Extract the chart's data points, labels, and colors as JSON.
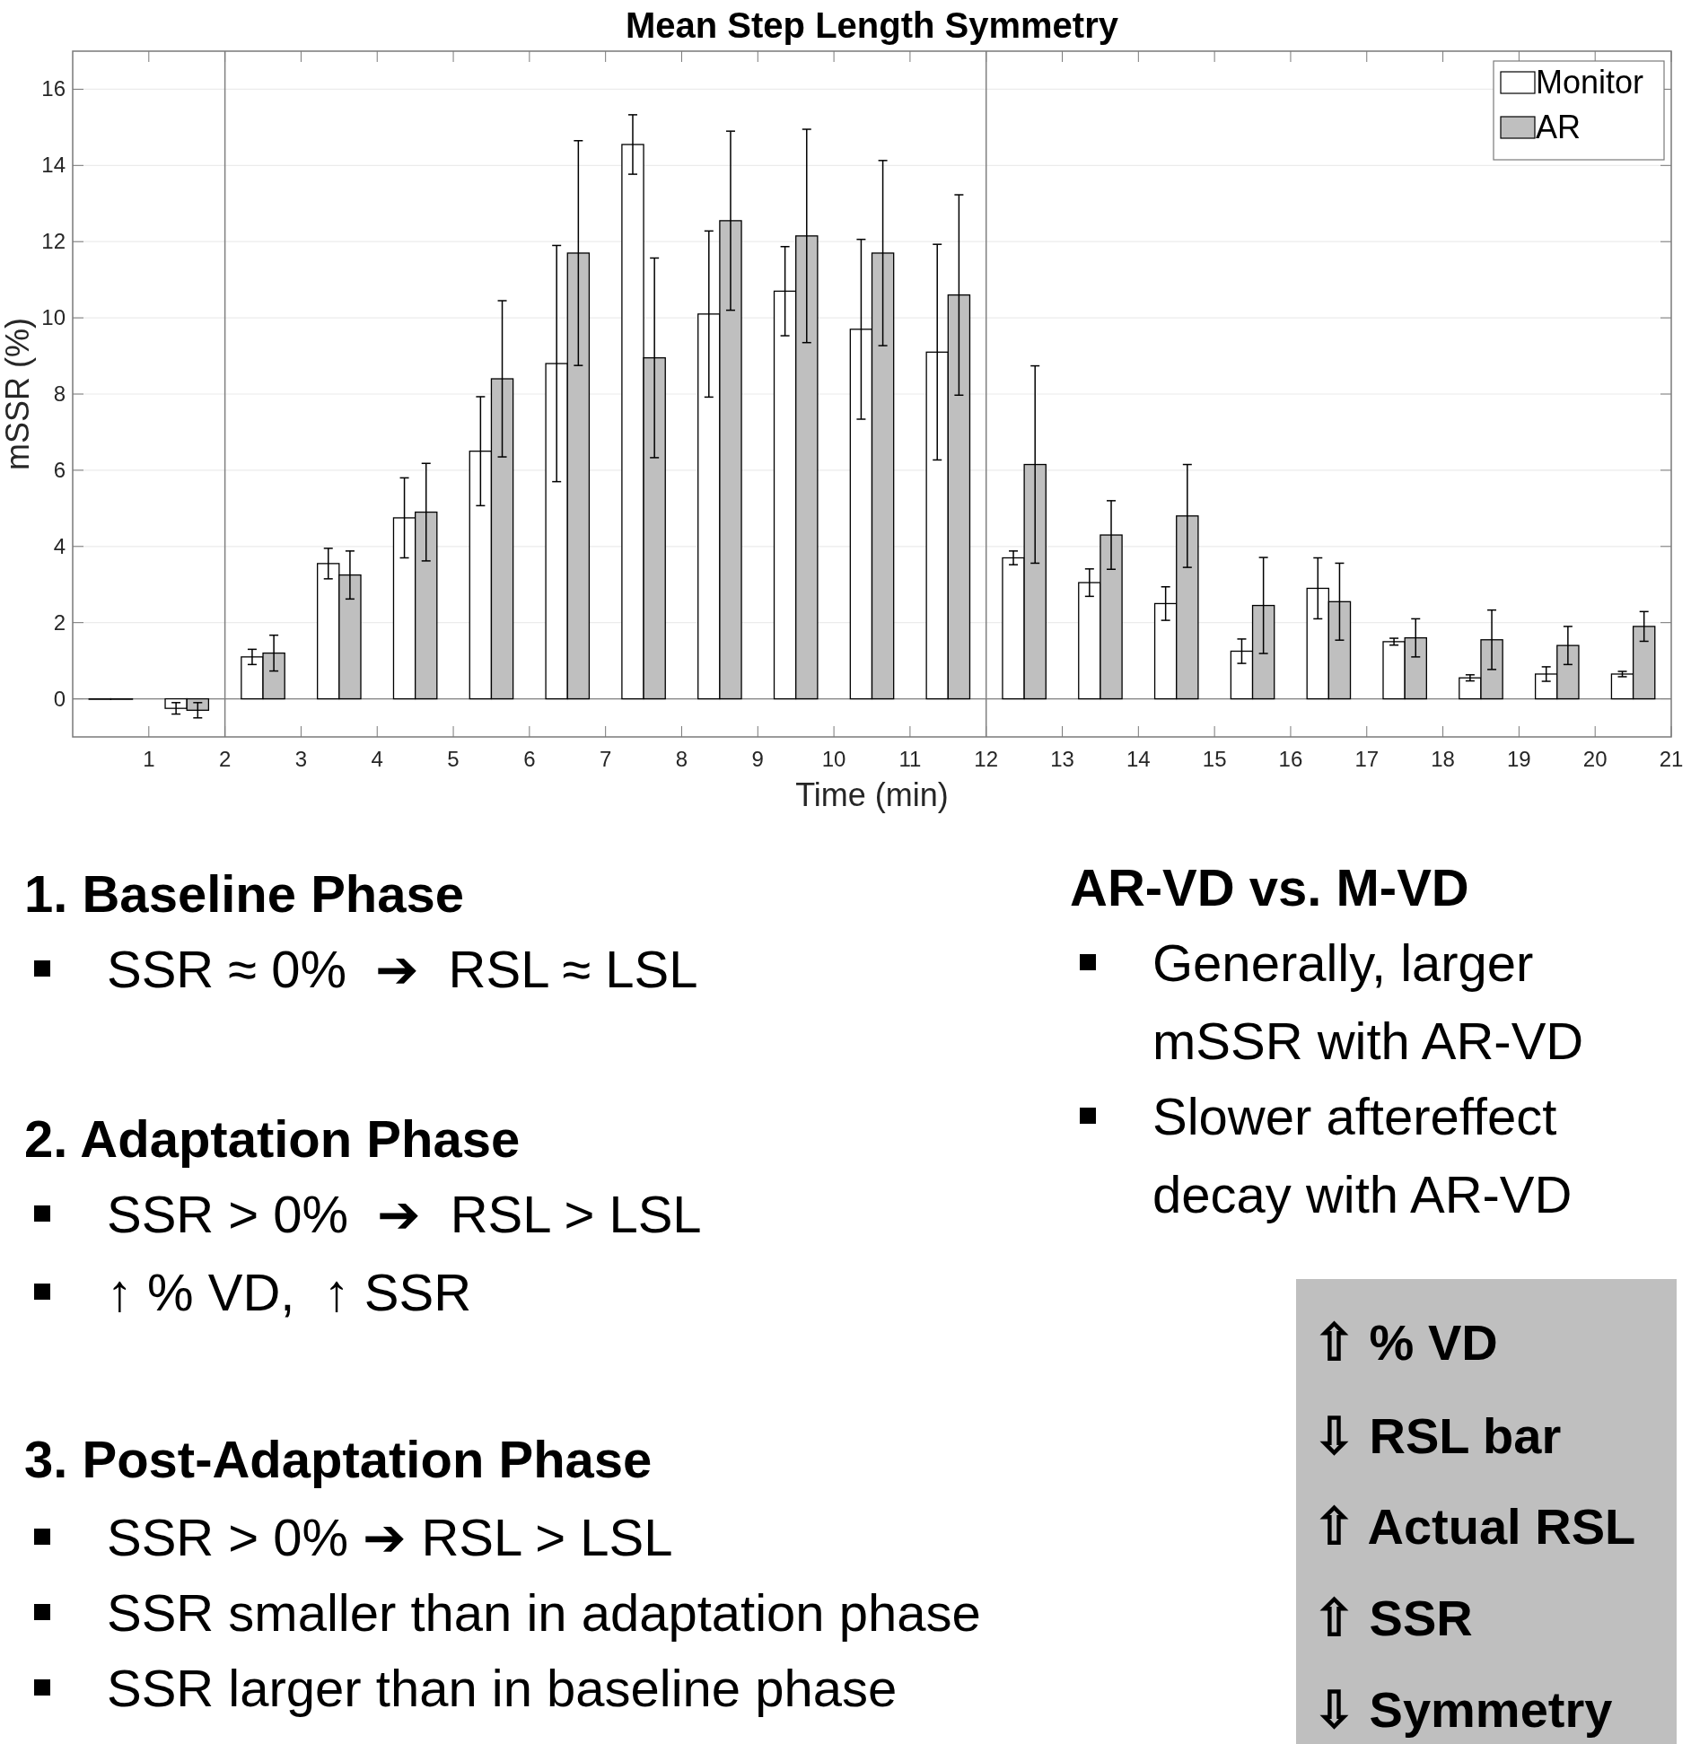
{
  "chart_data": {
    "type": "bar",
    "title": "Mean Step Length Symmetry",
    "xlabel": "Time (min)",
    "ylabel": "mSSR (%)",
    "x": [
      0.5,
      1.5,
      2.5,
      3.5,
      4.5,
      5.5,
      6.5,
      7.5,
      8.5,
      9.5,
      10.5,
      11.5,
      12.5,
      13.5,
      14.5,
      15.5,
      16.5,
      17.5,
      18.5,
      19.5,
      20.5
    ],
    "series": [
      {
        "name": "Monitor",
        "color": "#ffffff",
        "values": [
          0,
          -0.25,
          1.1,
          3.55,
          4.75,
          6.5,
          8.8,
          14.55,
          10.1,
          10.7,
          9.7,
          9.1,
          3.7,
          3.05,
          2.5,
          1.25,
          2.9,
          1.5,
          0.55,
          0.65,
          0.65
        ],
        "errors": [
          null,
          0.15,
          0.2,
          0.4,
          1.05,
          1.43,
          3.1,
          0.78,
          2.18,
          1.17,
          2.36,
          2.83,
          0.18,
          0.36,
          0.44,
          0.32,
          0.8,
          0.09,
          0.08,
          0.19,
          0.07
        ]
      },
      {
        "name": "AR",
        "color": "#bfbfbf",
        "values": [
          0,
          -0.3,
          1.2,
          3.25,
          4.9,
          8.4,
          11.7,
          8.95,
          12.55,
          12.15,
          11.7,
          10.6,
          6.15,
          4.3,
          4.8,
          2.45,
          2.55,
          1.6,
          1.55,
          1.4,
          1.9
        ],
        "errors": [
          null,
          0.2,
          0.47,
          0.63,
          1.28,
          2.05,
          2.95,
          2.62,
          2.35,
          2.8,
          2.43,
          2.63,
          2.59,
          0.9,
          1.35,
          1.26,
          1.01,
          0.5,
          0.78,
          0.5,
          0.39
        ]
      }
    ],
    "xlim": [
      0,
      21
    ],
    "xticks": [
      1,
      2,
      3,
      4,
      5,
      6,
      7,
      8,
      9,
      10,
      11,
      12,
      13,
      14,
      15,
      16,
      17,
      18,
      19,
      20,
      21
    ],
    "ylim": [
      -1,
      17
    ],
    "yticks": [
      0,
      2,
      4,
      6,
      8,
      10,
      12,
      14,
      16
    ],
    "grid": "y",
    "legend": "top right",
    "ref_lines": [
      {
        "axis": "x",
        "value": 2,
        "color": "#808080"
      },
      {
        "axis": "x",
        "value": 12,
        "color": "#808080"
      }
    ],
    "annotations": [
      "1. Baseline Phase",
      "SSR ≈ 0%  ➔  RSL ≈ LSL",
      "2. Adaptation Phase",
      "SSR > 0%  ➔  RSL > LSL",
      "↑ % VD,  ↑ SSR",
      "3. Post-Adaptation Phase",
      "SSR > 0% ➔ RSL > LSL",
      "SSR smaller than in adaptation phase",
      "SSR larger than in baseline phase",
      "AR-VD vs. M-VD",
      "Generally, larger mSSR with AR-VD",
      "Slower aftereffect decay with AR-VD",
      "⇧ % VD",
      "⇩ RSL bar",
      "⇧ Actual RSL",
      "⇧ SSR",
      "⇩ Symmetry"
    ]
  }
}
